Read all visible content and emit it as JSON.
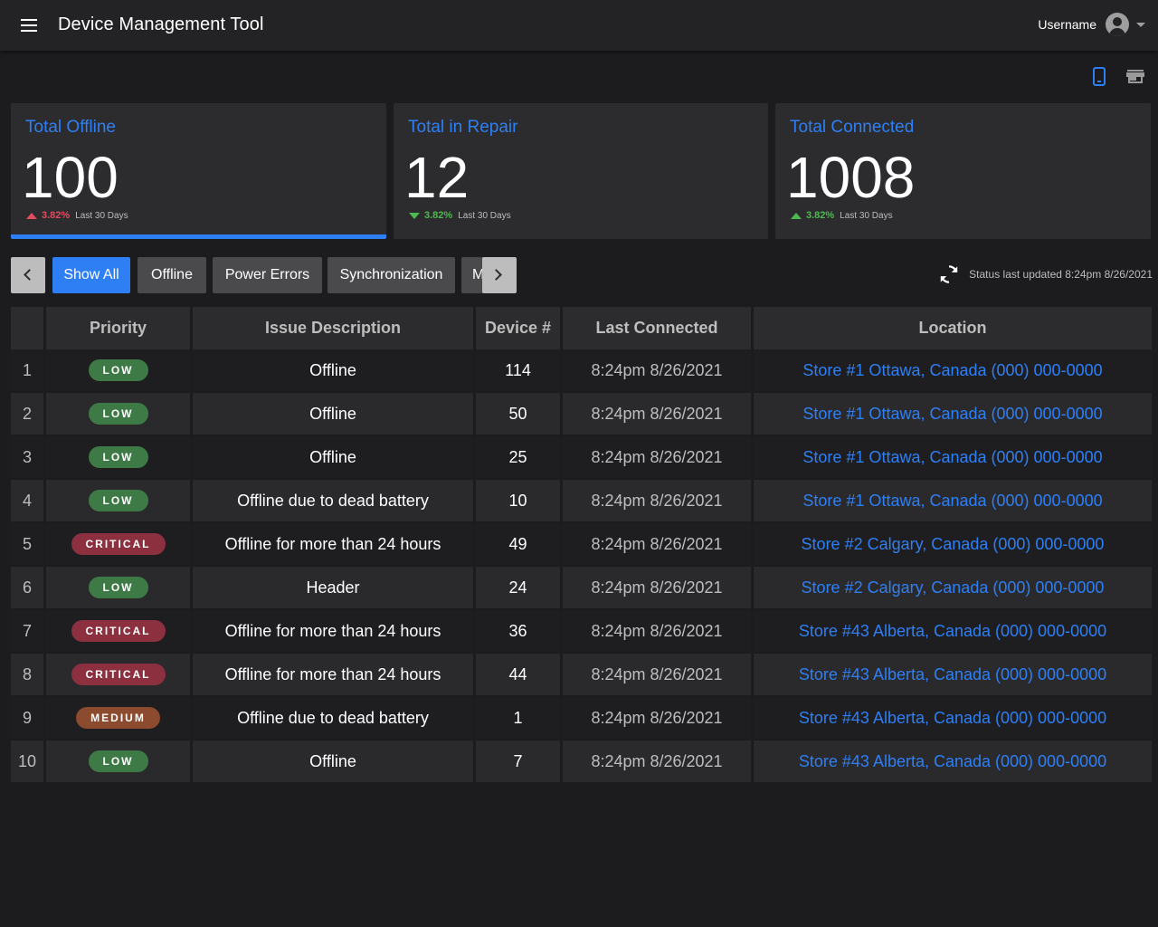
{
  "app": {
    "title": "Device Management Tool",
    "username": "Username"
  },
  "view_icons": [
    {
      "name": "phone-icon",
      "active": true
    },
    {
      "name": "store-icon",
      "active": false
    }
  ],
  "colors": {
    "accent": "#2f7ff4",
    "low": "#3e7a45",
    "critical": "#8c2f3f",
    "medium": "#8c4a2e",
    "trend_down": "#e14c5f",
    "trend_up": "#4cba4f"
  },
  "cards": [
    {
      "title": "Total Offline",
      "value": "100",
      "trend_dir": "up",
      "trend_color": "#e14c5f",
      "trend_pct": "3.82%",
      "trend_label": "Last 30 Days",
      "selected": true
    },
    {
      "title": "Total in Repair",
      "value": "12",
      "trend_dir": "down",
      "trend_color": "#4cba4f",
      "trend_pct": "3.82%",
      "trend_label": "Last 30 Days",
      "selected": false
    },
    {
      "title": "Total Connected",
      "value": "1008",
      "trend_dir": "up",
      "trend_color": "#4cba4f",
      "trend_pct": "3.82%",
      "trend_label": "Last 30 Days",
      "selected": false
    }
  ],
  "filters": {
    "chips": [
      {
        "label": "Show All",
        "active": true
      },
      {
        "label": "Offline",
        "active": false
      },
      {
        "label": "Power Errors",
        "active": false
      },
      {
        "label": "Synchronization",
        "active": false
      },
      {
        "label": "M",
        "active": false
      }
    ]
  },
  "status": {
    "text": "Status last updated 8:24pm 8/26/2021"
  },
  "table": {
    "headers": [
      "",
      "Priority",
      "Issue Description",
      "Device #",
      "Last Connected",
      "Location"
    ],
    "rows": [
      {
        "idx": "1",
        "priority": "LOW",
        "level": "low",
        "desc": "Offline",
        "device": "114",
        "last": "8:24pm 8/26/2021",
        "location": "Store #1 Ottawa, Canada (000) 000-0000"
      },
      {
        "idx": "2",
        "priority": "LOW",
        "level": "low",
        "desc": "Offline",
        "device": "50",
        "last": "8:24pm 8/26/2021",
        "location": "Store #1 Ottawa, Canada (000) 000-0000"
      },
      {
        "idx": "3",
        "priority": "LOW",
        "level": "low",
        "desc": "Offline",
        "device": "25",
        "last": "8:24pm 8/26/2021",
        "location": "Store #1 Ottawa, Canada (000) 000-0000"
      },
      {
        "idx": "4",
        "priority": "LOW",
        "level": "low",
        "desc": "Offline due to dead battery",
        "device": "10",
        "last": "8:24pm 8/26/2021",
        "location": "Store #1 Ottawa, Canada (000) 000-0000"
      },
      {
        "idx": "5",
        "priority": "CRITICAL",
        "level": "critical",
        "desc": "Offline for more than 24 hours",
        "device": "49",
        "last": "8:24pm 8/26/2021",
        "location": "Store #2 Calgary, Canada (000) 000-0000"
      },
      {
        "idx": "6",
        "priority": "LOW",
        "level": "low",
        "desc": "Header",
        "device": "24",
        "last": "8:24pm 8/26/2021",
        "location": "Store #2 Calgary, Canada (000) 000-0000"
      },
      {
        "idx": "7",
        "priority": "CRITICAL",
        "level": "critical",
        "desc": "Offline for more than 24 hours",
        "device": "36",
        "last": "8:24pm 8/26/2021",
        "location": "Store #43 Alberta, Canada (000) 000-0000"
      },
      {
        "idx": "8",
        "priority": "CRITICAL",
        "level": "critical",
        "desc": "Offline for more than 24 hours",
        "device": "44",
        "last": "8:24pm 8/26/2021",
        "location": "Store #43 Alberta, Canada (000) 000-0000"
      },
      {
        "idx": "9",
        "priority": "MEDIUM",
        "level": "medium",
        "desc": "Offline due to dead battery",
        "device": "1",
        "last": "8:24pm 8/26/2021",
        "location": "Store #43 Alberta, Canada (000) 000-0000"
      },
      {
        "idx": "10",
        "priority": "LOW",
        "level": "low",
        "desc": "Offline",
        "device": "7",
        "last": "8:24pm 8/26/2021",
        "location": "Store #43 Alberta, Canada (000) 000-0000"
      }
    ]
  }
}
